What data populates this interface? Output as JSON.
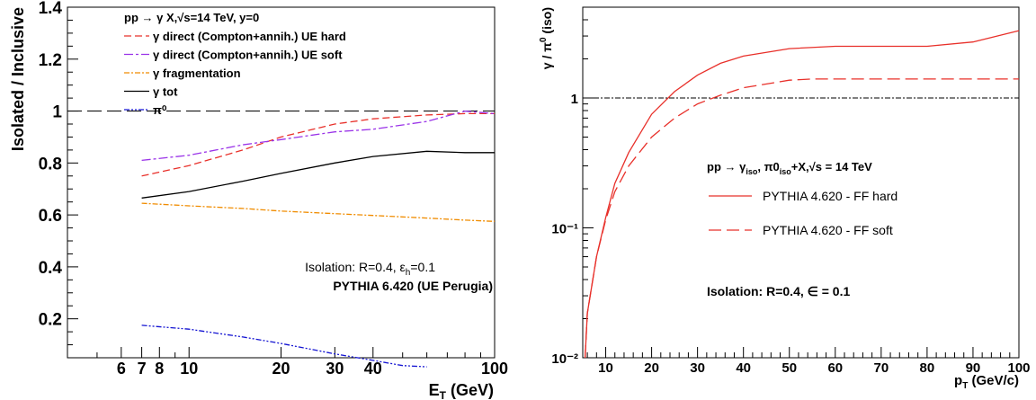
{
  "chart_data": [
    {
      "type": "line",
      "title": "pp → γ X,√s=14 TeV, y=0",
      "xlabel": "E_T (GeV)",
      "ylabel": "Isolated / Inclusive",
      "x_scale": "log",
      "xlim": [
        4,
        100
      ],
      "ylim": [
        0.05,
        1.4
      ],
      "x_tick_labels": [
        "6",
        "7",
        "8",
        "10",
        "20",
        "30",
        "40",
        "100"
      ],
      "x_ticks": [
        6,
        7,
        8,
        10,
        20,
        30,
        40,
        100
      ],
      "y_ticks": [
        0.2,
        0.4,
        0.6,
        0.8,
        1,
        1.2,
        1.4
      ],
      "y_tick_labels": [
        "0.2",
        "0.4",
        "0.6",
        "0.8",
        "1",
        "1.2",
        "1.4"
      ],
      "reference_line": 1,
      "grid": false,
      "legend_position": "top-left",
      "annotations": [
        "Isolation: R=0.4,  ε_h=0.1",
        "PYTHIA 6.420 (UE Perugia)"
      ],
      "series": [
        {
          "name": "γ direct (Compton+annih.) UE hard",
          "color": "#e8302a",
          "dash": "8,4",
          "x": [
            7,
            10,
            15,
            20,
            30,
            40,
            60,
            80,
            100
          ],
          "y": [
            0.75,
            0.79,
            0.85,
            0.9,
            0.95,
            0.97,
            0.985,
            0.99,
            0.99
          ]
        },
        {
          "name": "γ direct (Compton+annih.) UE soft",
          "color": "#9a33e8",
          "dash": "10,3,3,3",
          "x": [
            7,
            10,
            15,
            20,
            30,
            40,
            60,
            80,
            100
          ],
          "y": [
            0.81,
            0.83,
            0.87,
            0.89,
            0.92,
            0.93,
            0.96,
            1.0,
            0.99
          ]
        },
        {
          "name": "γ fragmentation",
          "color": "#f08c00",
          "dash": "6,2,2,2",
          "x": [
            7,
            10,
            15,
            20,
            30,
            40,
            60,
            80,
            100
          ],
          "y": [
            0.645,
            0.635,
            0.625,
            0.615,
            0.605,
            0.598,
            0.588,
            0.58,
            0.575
          ]
        },
        {
          "name": "γ tot",
          "color": "#000000",
          "dash": "",
          "x": [
            7,
            10,
            15,
            20,
            30,
            40,
            60,
            80,
            100
          ],
          "y": [
            0.665,
            0.69,
            0.73,
            0.76,
            0.8,
            0.825,
            0.845,
            0.84,
            0.84
          ]
        },
        {
          "name": "π⁰",
          "color": "#1414d2",
          "dash": "6,2,2,2,2,2",
          "x": [
            7,
            10,
            15,
            20,
            30,
            40,
            50,
            60
          ],
          "y": [
            0.175,
            0.16,
            0.13,
            0.105,
            0.065,
            0.04,
            0.02,
            0.015
          ]
        }
      ]
    },
    {
      "type": "line",
      "title": "pp → γ_iso, π0_iso+X,√s = 14 TeV",
      "xlabel": "p_T (GeV/c)",
      "ylabel": "γ / π⁰ (iso)",
      "y_scale": "log",
      "xlim": [
        5,
        100
      ],
      "ylim": [
        0.01,
        5
      ],
      "x_ticks": [
        10,
        20,
        30,
        40,
        50,
        60,
        70,
        80,
        90,
        100
      ],
      "x_tick_labels": [
        "10",
        "20",
        "30",
        "40",
        "50",
        "60",
        "70",
        "80",
        "90",
        "100"
      ],
      "y_ticks": [
        0.01,
        0.1,
        1
      ],
      "y_tick_labels": [
        "10⁻²",
        "10⁻¹",
        "1"
      ],
      "reference_line": 1,
      "grid": false,
      "legend_position": "center",
      "annotations": [
        "Isolation: R=0.4, ∈ = 0.1"
      ],
      "series": [
        {
          "name": "PYTHIA 4.620 - FF hard",
          "color": "#e8302a",
          "dash": "",
          "x": [
            5.5,
            6,
            8,
            10,
            12,
            15,
            20,
            25,
            30,
            35,
            40,
            50,
            60,
            70,
            80,
            90,
            100
          ],
          "y": [
            0.01,
            0.022,
            0.06,
            0.12,
            0.22,
            0.38,
            0.75,
            1.12,
            1.5,
            1.85,
            2.1,
            2.4,
            2.5,
            2.5,
            2.5,
            2.7,
            3.3
          ]
        },
        {
          "name": "PYTHIA 4.620 - FF soft",
          "color": "#e8302a",
          "dash": "14,6",
          "x": [
            5.5,
            6,
            8,
            10,
            12,
            15,
            20,
            25,
            30,
            35,
            40,
            50,
            55,
            60,
            70,
            80,
            90,
            100
          ],
          "y": [
            0.01,
            0.022,
            0.06,
            0.115,
            0.19,
            0.3,
            0.5,
            0.7,
            0.9,
            1.05,
            1.2,
            1.37,
            1.4,
            1.4,
            1.4,
            1.4,
            1.4,
            1.4
          ]
        }
      ]
    }
  ]
}
